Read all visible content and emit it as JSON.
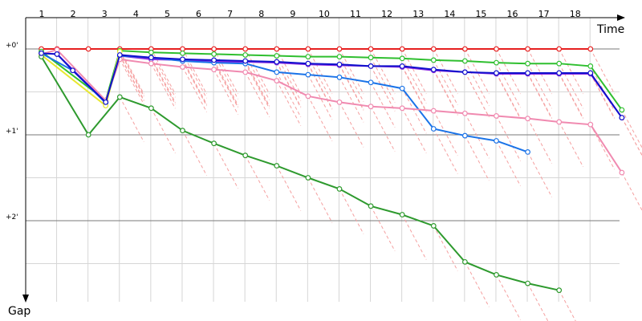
{
  "chart_data": {
    "type": "line",
    "xlabel": "Time",
    "ylabel": "Gap",
    "x_ticks": [
      "1",
      "2",
      "3",
      "4",
      "5",
      "6",
      "7",
      "8",
      "9",
      "10",
      "11",
      "12",
      "13",
      "14",
      "15",
      "16",
      "17",
      "18"
    ],
    "y_ticks": [
      "+0'",
      "+1'",
      "+2'"
    ],
    "ylim": [
      0,
      2.85
    ],
    "grid": true,
    "series": [
      {
        "color": "#e62020",
        "points": [
          [
            0.5,
            0
          ],
          [
            1,
            0
          ],
          [
            2,
            0
          ],
          [
            3,
            0
          ],
          [
            4,
            0
          ],
          [
            5,
            0
          ],
          [
            6,
            0
          ],
          [
            7,
            0
          ],
          [
            8,
            0
          ],
          [
            9,
            0
          ],
          [
            10,
            0
          ],
          [
            11,
            0
          ],
          [
            12,
            0
          ],
          [
            13,
            0
          ],
          [
            14,
            0
          ],
          [
            15,
            0
          ],
          [
            16,
            0
          ],
          [
            17,
            0
          ],
          [
            18,
            0
          ]
        ]
      },
      {
        "color": "#2fbf2f",
        "points": [
          [
            0.5,
            0.03
          ],
          [
            2.55,
            0.6
          ],
          [
            3,
            0.02
          ],
          [
            4,
            0.04
          ],
          [
            5,
            0.05
          ],
          [
            6,
            0.06
          ],
          [
            7,
            0.07
          ],
          [
            8,
            0.08
          ],
          [
            9,
            0.09
          ],
          [
            10,
            0.09
          ],
          [
            11,
            0.1
          ],
          [
            12,
            0.11
          ],
          [
            13,
            0.13
          ],
          [
            14,
            0.14
          ],
          [
            15,
            0.16
          ],
          [
            16,
            0.17
          ],
          [
            17,
            0.17
          ],
          [
            18,
            0.2
          ],
          [
            19,
            0.71
          ]
        ]
      },
      {
        "color": "#8a2be2",
        "points": [
          [
            0.5,
            0.05
          ],
          [
            1,
            0.06
          ],
          [
            2.55,
            0.62
          ],
          [
            3,
            0.08
          ],
          [
            4,
            0.12
          ],
          [
            5,
            0.13
          ],
          [
            6,
            0.15
          ],
          [
            7,
            0.15
          ],
          [
            8,
            0.16
          ],
          [
            9,
            0.18
          ],
          [
            10,
            0.19
          ],
          [
            11,
            0.2
          ],
          [
            12,
            0.21
          ],
          [
            13,
            0.25
          ],
          [
            14,
            0.27
          ],
          [
            15,
            0.29
          ],
          [
            16,
            0.29
          ],
          [
            17,
            0.29
          ],
          [
            18,
            0.29
          ],
          [
            19,
            0.8
          ]
        ]
      },
      {
        "color": "#1a73e8",
        "points": [
          [
            0.5,
            0.05
          ],
          [
            1.5,
            0.25
          ],
          [
            2.55,
            0.63
          ],
          [
            3,
            0.08
          ],
          [
            4,
            0.1
          ],
          [
            5,
            0.14
          ],
          [
            6,
            0.16
          ],
          [
            7,
            0.17
          ],
          [
            8,
            0.27
          ],
          [
            9,
            0.3
          ],
          [
            10,
            0.33
          ],
          [
            11,
            0.39
          ],
          [
            12,
            0.46
          ],
          [
            13,
            0.93
          ],
          [
            14,
            1.01
          ],
          [
            15,
            1.07
          ],
          [
            16,
            1.2
          ]
        ]
      },
      {
        "color": "#f08ab0",
        "points": [
          [
            0.5,
            0.06
          ],
          [
            1,
            0.01
          ],
          [
            2.55,
            0.6
          ],
          [
            3,
            0.12
          ],
          [
            4,
            0.17
          ],
          [
            5,
            0.21
          ],
          [
            6,
            0.24
          ],
          [
            7,
            0.27
          ],
          [
            8,
            0.37
          ],
          [
            9,
            0.55
          ],
          [
            10,
            0.62
          ],
          [
            11,
            0.67
          ],
          [
            12,
            0.69
          ],
          [
            13,
            0.72
          ],
          [
            14,
            0.75
          ],
          [
            15,
            0.78
          ],
          [
            16,
            0.81
          ],
          [
            17,
            0.85
          ],
          [
            18,
            0.88
          ],
          [
            19,
            1.44
          ]
        ]
      },
      {
        "color": "#e8e830",
        "points": [
          [
            0.5,
            0.07
          ],
          [
            2.55,
            0.66
          ],
          [
            3,
            0.03
          ]
        ]
      },
      {
        "color": "#2e9a2e",
        "points": [
          [
            0.5,
            0.09
          ],
          [
            2,
            1.0
          ],
          [
            3,
            0.56
          ],
          [
            4,
            0.69
          ],
          [
            5,
            0.95
          ],
          [
            6,
            1.1
          ],
          [
            7,
            1.24
          ],
          [
            8,
            1.36
          ],
          [
            9,
            1.5
          ],
          [
            10,
            1.63
          ],
          [
            11,
            1.83
          ],
          [
            12,
            1.93
          ],
          [
            13,
            2.06
          ],
          [
            14,
            2.48
          ],
          [
            15,
            2.63
          ],
          [
            16,
            2.73
          ],
          [
            17,
            2.81
          ]
        ]
      },
      {
        "color": "#1010cc",
        "points": [
          [
            0.5,
            0.05
          ],
          [
            1,
            0.06
          ],
          [
            1.5,
            0.25
          ],
          [
            2.55,
            0.62
          ],
          [
            3,
            0.07
          ],
          [
            4,
            0.1
          ],
          [
            5,
            0.12
          ],
          [
            6,
            0.13
          ],
          [
            7,
            0.14
          ],
          [
            8,
            0.15
          ],
          [
            9,
            0.17
          ],
          [
            10,
            0.18
          ],
          [
            11,
            0.2
          ],
          [
            12,
            0.2
          ],
          [
            13,
            0.24
          ],
          [
            14,
            0.27
          ],
          [
            15,
            0.28
          ],
          [
            16,
            0.28
          ],
          [
            17,
            0.28
          ],
          [
            18,
            0.28
          ],
          [
            19,
            0.8
          ]
        ]
      }
    ]
  }
}
